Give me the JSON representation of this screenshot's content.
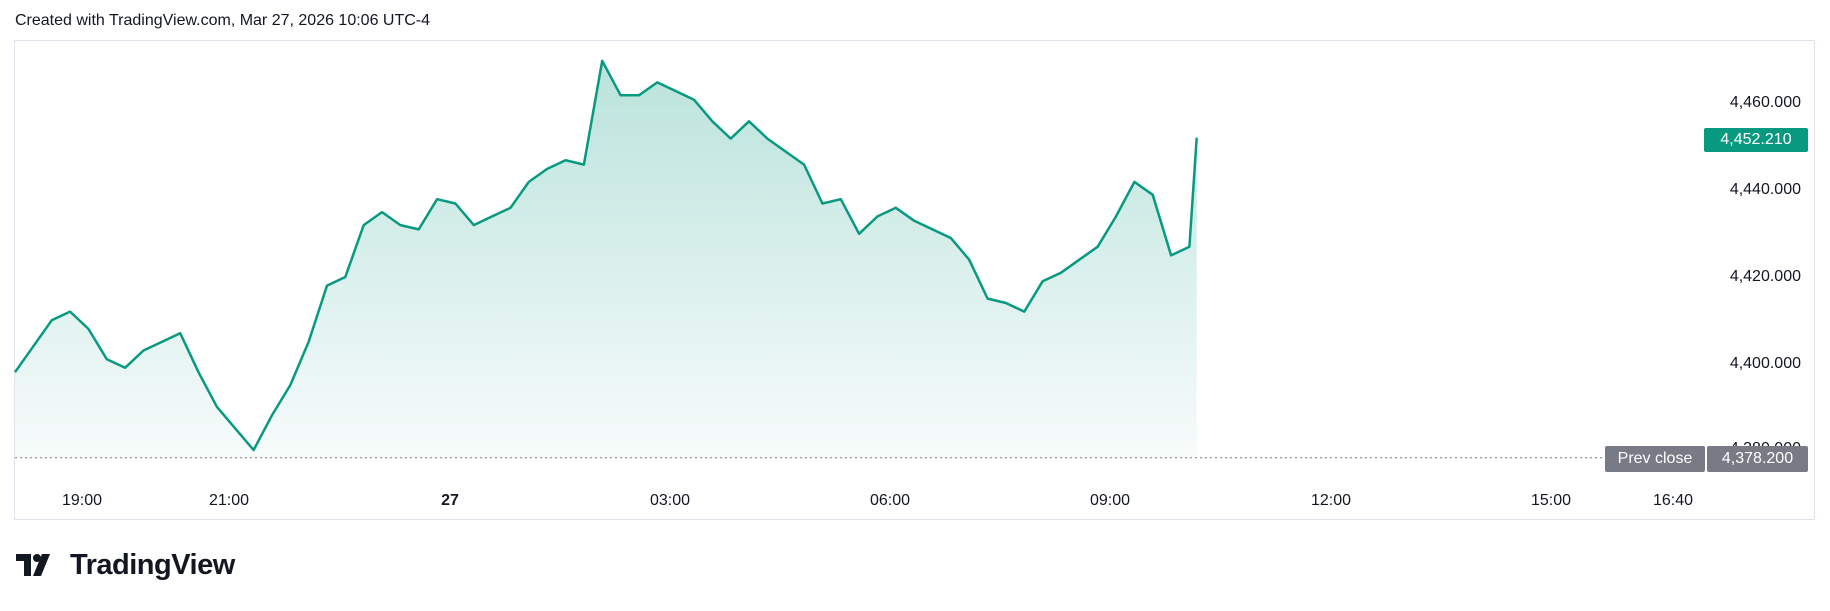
{
  "header": {
    "title": "Created with TradingView.com, Mar 27, 2026 10:06 UTC-4"
  },
  "brand": {
    "name": "TradingView",
    "icon": "tradingview-logo-icon"
  },
  "colors": {
    "line": "#089981",
    "fill_top": "#089981",
    "prev_close": "#787b86",
    "grid_border": "#e0e3eb"
  },
  "price_axis": {
    "labels": [
      "4,460.000",
      "4,440.000",
      "4,420.000",
      "4,400.000",
      "4,380.000"
    ],
    "last_price": "4,452.210",
    "prev_close_tag": "Prev close",
    "prev_close_value": "4,378.200"
  },
  "time_axis": {
    "labels": [
      "19:00",
      "21:00",
      "27",
      "03:00",
      "06:00",
      "09:00",
      "12:00",
      "15:00",
      "16:40"
    ]
  },
  "chart_data": {
    "type": "area",
    "title": "",
    "xlabel": "",
    "ylabel": "",
    "ylim": [
      4375,
      4475
    ],
    "x_range": [
      "2026-03-26 18:00",
      "2026-03-27 16:40"
    ],
    "prev_close": 4378.2,
    "last": 4452.21,
    "x": [
      "18:00",
      "18:15",
      "18:30",
      "18:45",
      "19:00",
      "19:15",
      "19:30",
      "19:45",
      "20:00",
      "20:15",
      "20:30",
      "20:45",
      "21:00",
      "21:15",
      "21:30",
      "21:45",
      "22:00",
      "22:15",
      "22:30",
      "22:45",
      "23:00",
      "23:15",
      "23:30",
      "23:45",
      "00:00",
      "00:15",
      "00:30",
      "00:45",
      "01:00",
      "01:15",
      "01:30",
      "01:45",
      "02:00",
      "02:15",
      "02:30",
      "02:45",
      "03:00",
      "03:15",
      "03:30",
      "03:45",
      "04:00",
      "04:15",
      "04:30",
      "04:45",
      "05:00",
      "05:15",
      "05:30",
      "05:45",
      "06:00",
      "06:15",
      "06:30",
      "06:45",
      "07:00",
      "07:15",
      "07:30",
      "07:45",
      "08:00",
      "08:15",
      "08:30",
      "08:45",
      "09:00",
      "09:15",
      "09:30",
      "09:45",
      "10:00",
      "10:06"
    ],
    "values": [
      4398,
      4404,
      4410,
      4412,
      4408,
      4401,
      4399,
      4403,
      4405,
      4407,
      4398,
      4390,
      4385,
      4380,
      4388,
      4395,
      4405,
      4418,
      4420,
      4432,
      4435,
      4432,
      4431,
      4438,
      4437,
      4432,
      4434,
      4436,
      4442,
      4445,
      4447,
      4446,
      4470,
      4462,
      4462,
      4465,
      4463,
      4461,
      4456,
      4452,
      4456,
      4452,
      4449,
      4446,
      4437,
      4438,
      4430,
      4434,
      4436,
      4433,
      4431,
      4429,
      4424,
      4415,
      4414,
      4412,
      4419,
      4421,
      4424,
      4427,
      4434,
      4442,
      4439,
      4425,
      4427,
      4452.21
    ]
  }
}
